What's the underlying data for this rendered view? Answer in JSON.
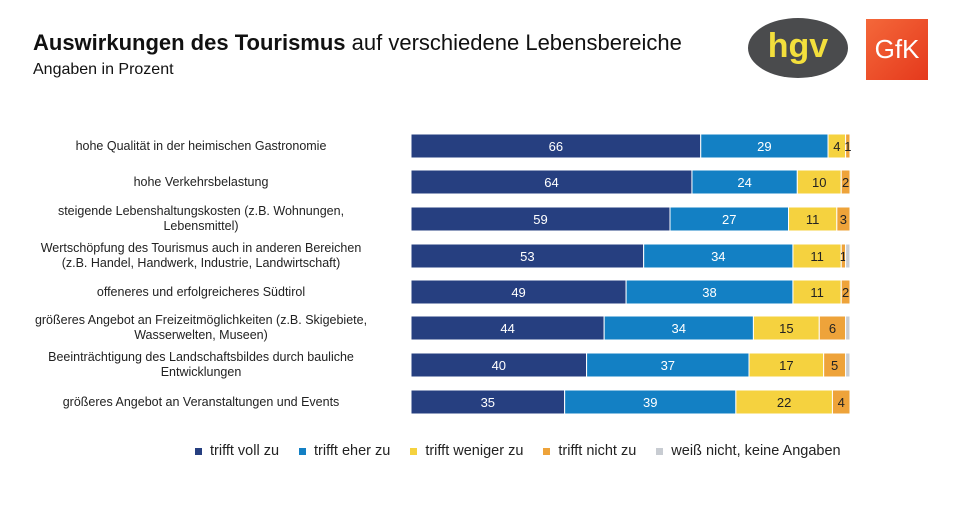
{
  "header": {
    "title_bold": "Auswirkungen des Tourismus",
    "title_rest": " auf verschiedene Lebensbereiche",
    "subtitle": "Angaben in Prozent",
    "logo_hgv": "hgv",
    "logo_gfk": "GfK"
  },
  "chart_data": {
    "type": "bar",
    "orientation": "horizontal",
    "stacked": true,
    "xlim": [
      0,
      100
    ],
    "categories": [
      [
        "hohe Qualität in der heimischen Gastronomie"
      ],
      [
        "hohe Verkehrsbelastung"
      ],
      [
        "steigende Lebenshaltungskosten (z.B. Wohnungen,",
        "Lebensmittel)"
      ],
      [
        "Wertschöpfung des Tourismus auch in anderen Bereichen",
        "(z.B. Handel, Handwerk, Industrie, Landwirtschaft)"
      ],
      [
        "offeneres und erfolgreicheres Südtirol"
      ],
      [
        "größeres Angebot an Freizeitmöglichkeiten (z.B. Skigebiete,",
        "Wasserwelten, Museen)"
      ],
      [
        "Beeinträchtigung des Landschaftsbildes durch bauliche",
        "Entwicklungen"
      ],
      [
        "größeres Angebot an Veranstaltungen und Events"
      ]
    ],
    "series": [
      {
        "name": "trifft voll zu",
        "color": "#263f80",
        "values": [
          66,
          64,
          59,
          53,
          49,
          44,
          40,
          35
        ]
      },
      {
        "name": "trifft eher zu",
        "color": "#1380c4",
        "values": [
          29,
          24,
          27,
          34,
          38,
          34,
          37,
          39
        ]
      },
      {
        "name": "trifft weniger zu",
        "color": "#f5d23f",
        "values": [
          4,
          10,
          11,
          11,
          11,
          15,
          17,
          22
        ]
      },
      {
        "name": "trifft nicht zu",
        "color": "#eea33a",
        "values": [
          1,
          2,
          3,
          1,
          2,
          6,
          5,
          4
        ]
      },
      {
        "name": "weiß nicht, keine Angaben",
        "color": "#c8ccd2",
        "values": [
          0,
          0,
          0,
          1,
          0,
          1,
          1,
          0
        ]
      }
    ],
    "legend": "bottom"
  }
}
